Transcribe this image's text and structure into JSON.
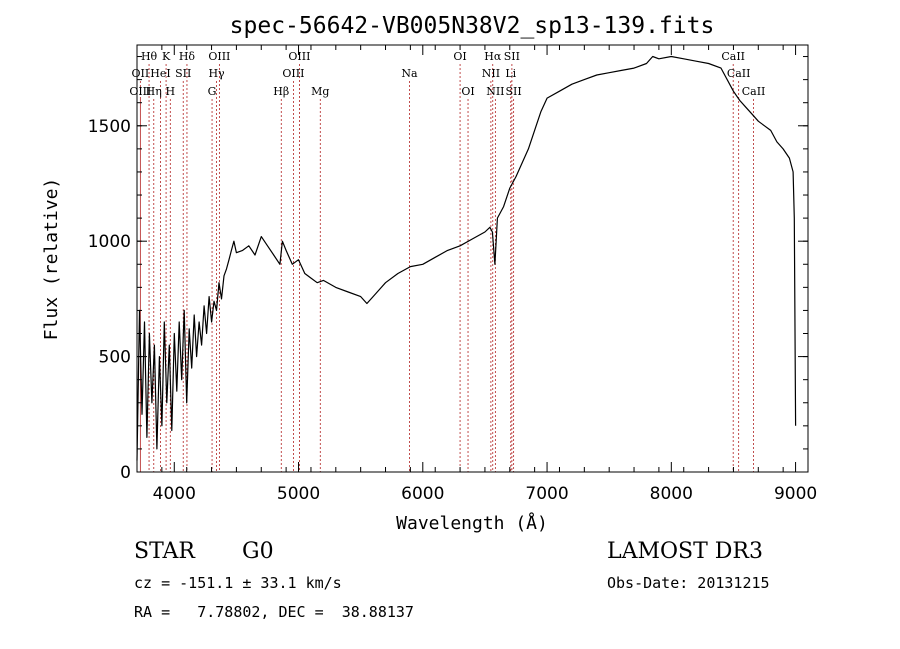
{
  "chart_data": {
    "type": "line",
    "title": "spec-56642-VB005N38V2_sp13-139.fits",
    "xlabel": "Wavelength (Å)",
    "ylabel": "Flux (relative)",
    "xlim": [
      3700,
      9100
    ],
    "ylim": [
      0,
      1850
    ],
    "x_ticks": [
      4000,
      5000,
      6000,
      7000,
      8000,
      9000
    ],
    "y_ticks": [
      0,
      500,
      1000,
      1500
    ],
    "x_minor_step": 200,
    "y_minor_step": 100,
    "series": [
      {
        "name": "flux",
        "x": [
          3700,
          3720,
          3740,
          3760,
          3780,
          3800,
          3820,
          3840,
          3860,
          3880,
          3900,
          3920,
          3940,
          3960,
          3980,
          4000,
          4020,
          4040,
          4060,
          4080,
          4100,
          4120,
          4140,
          4160,
          4180,
          4200,
          4220,
          4240,
          4260,
          4280,
          4300,
          4320,
          4340,
          4360,
          4380,
          4400,
          4420,
          4440,
          4460,
          4480,
          4500,
          4550,
          4600,
          4650,
          4700,
          4750,
          4800,
          4850,
          4870,
          4900,
          4950,
          5000,
          5050,
          5100,
          5150,
          5200,
          5300,
          5400,
          5500,
          5550,
          5600,
          5700,
          5800,
          5900,
          6000,
          6100,
          6200,
          6300,
          6400,
          6500,
          6540,
          6560,
          6580,
          6600,
          6650,
          6700,
          6750,
          6800,
          6850,
          6900,
          6950,
          7000,
          7100,
          7200,
          7300,
          7400,
          7500,
          7600,
          7700,
          7800,
          7850,
          7900,
          8000,
          8100,
          8200,
          8300,
          8400,
          8500,
          8550,
          8600,
          8650,
          8700,
          8750,
          8800,
          8850,
          8900,
          8950,
          8980,
          8990,
          9000
        ],
        "y": [
          50,
          700,
          250,
          650,
          150,
          600,
          300,
          550,
          100,
          500,
          200,
          650,
          300,
          550,
          180,
          600,
          350,
          650,
          400,
          700,
          300,
          620,
          450,
          680,
          500,
          650,
          550,
          720,
          600,
          760,
          650,
          740,
          700,
          820,
          750,
          850,
          880,
          920,
          960,
          1000,
          950,
          960,
          980,
          940,
          1020,
          980,
          940,
          900,
          1000,
          960,
          900,
          920,
          860,
          840,
          820,
          830,
          800,
          780,
          760,
          730,
          760,
          820,
          860,
          890,
          900,
          930,
          960,
          980,
          1010,
          1040,
          1060,
          1040,
          900,
          1100,
          1150,
          1230,
          1280,
          1340,
          1400,
          1480,
          1560,
          1620,
          1650,
          1680,
          1700,
          1720,
          1730,
          1740,
          1750,
          1770,
          1800,
          1790,
          1800,
          1790,
          1780,
          1770,
          1750,
          1650,
          1610,
          1580,
          1550,
          1520,
          1500,
          1480,
          1430,
          1400,
          1360,
          1300,
          1100,
          200
        ]
      }
    ],
    "line_markers": [
      {
        "label": "Hθ",
        "wavelength": 3797,
        "row": 0
      },
      {
        "label": "K",
        "wavelength": 3934,
        "row": 0
      },
      {
        "label": "Hδ",
        "wavelength": 4102,
        "row": 0
      },
      {
        "label": "OIII",
        "wavelength": 4363,
        "row": 0
      },
      {
        "label": "OIII",
        "wavelength": 5007,
        "row": 0
      },
      {
        "label": "OI",
        "wavelength": 6300,
        "row": 0
      },
      {
        "label": "Hα",
        "wavelength": 6563,
        "row": 0
      },
      {
        "label": "SII",
        "wavelength": 6717,
        "row": 0
      },
      {
        "label": "CaII",
        "wavelength": 8498,
        "row": 0
      },
      {
        "label": "OII",
        "wavelength": 3727,
        "row": 1
      },
      {
        "label": "HeI",
        "wavelength": 3889,
        "row": 1
      },
      {
        "label": "SII",
        "wavelength": 4072,
        "row": 1
      },
      {
        "label": "Hγ",
        "wavelength": 4340,
        "row": 1
      },
      {
        "label": "OIII",
        "wavelength": 4959,
        "row": 1
      },
      {
        "label": "Na",
        "wavelength": 5893,
        "row": 1
      },
      {
        "label": "NII",
        "wavelength": 6548,
        "row": 1
      },
      {
        "label": "Li",
        "wavelength": 6708,
        "row": 1
      },
      {
        "label": "CaII",
        "wavelength": 8542,
        "row": 1
      },
      {
        "label": "OIII",
        "wavelength": 3727,
        "row": 2
      },
      {
        "label": "Hη",
        "wavelength": 3835,
        "row": 2
      },
      {
        "label": "H",
        "wavelength": 3968,
        "row": 2
      },
      {
        "label": "G",
        "wavelength": 4304,
        "row": 2
      },
      {
        "label": "Hβ",
        "wavelength": 4861,
        "row": 2
      },
      {
        "label": "Mg",
        "wavelength": 5175,
        "row": 2
      },
      {
        "label": "OI",
        "wavelength": 6364,
        "row": 2
      },
      {
        "label": "NII",
        "wavelength": 6584,
        "row": 2
      },
      {
        "label": "SII",
        "wavelength": 6731,
        "row": 2
      },
      {
        "label": "CaII",
        "wavelength": 8662,
        "row": 2
      }
    ]
  },
  "info": {
    "object_class": "STAR",
    "subclass": "G0",
    "survey": "LAMOST DR3",
    "cz": "cz = -151.1 ± 33.1 km/s",
    "obs_date": "Obs-Date: 20131215",
    "coords": "RA =   7.78802, DEC =  38.88137"
  }
}
